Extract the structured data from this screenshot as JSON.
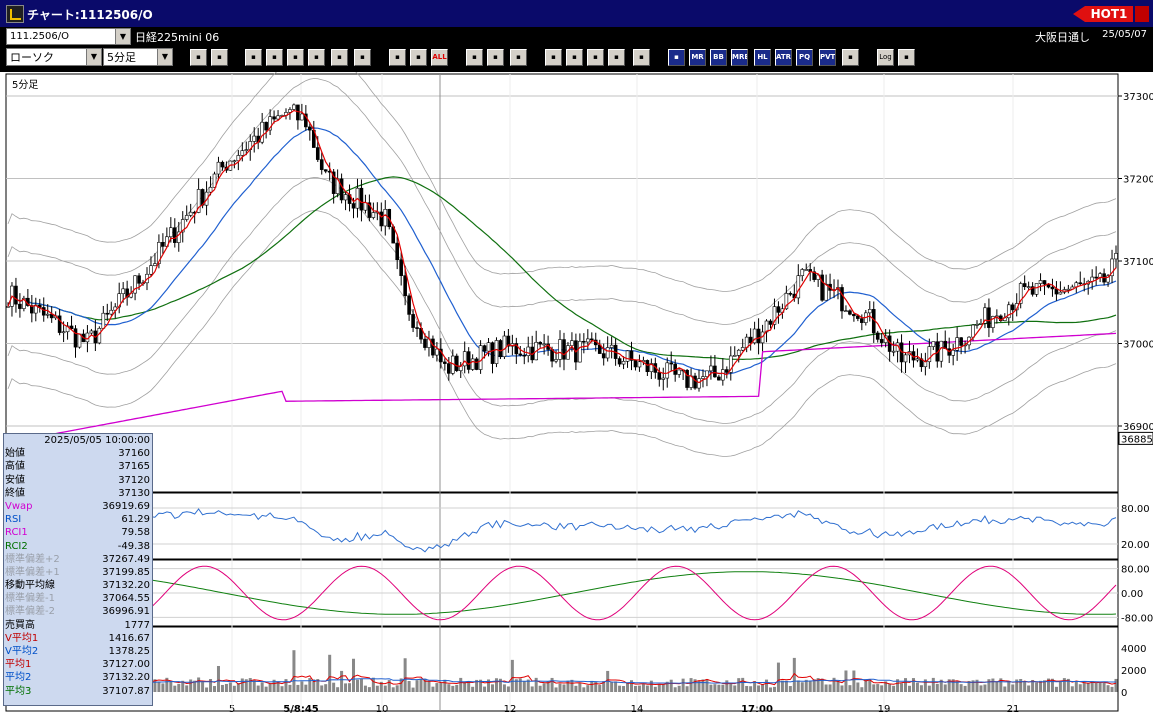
{
  "window": {
    "title": "チャート:1112506/O",
    "hot_label": "HOT1"
  },
  "info": {
    "symbol": "111.2506/O",
    "name": "日経225mini 06",
    "market": "大阪日通し",
    "date": "25/05/07"
  },
  "toolbar": {
    "chart_type": "ローソク",
    "interval": "5分足",
    "buttons": [
      {
        "icon": "zoom-icon",
        "label": ""
      },
      {
        "icon": "window-icon",
        "label": ""
      },
      {
        "icon": "pen-icon",
        "label": ""
      },
      {
        "icon": "line-draw-icon",
        "label": ""
      },
      {
        "icon": "cursor-icon",
        "label": ""
      },
      {
        "icon": "arrow-icon",
        "label": ""
      },
      {
        "icon": "memo-icon",
        "label": ""
      },
      {
        "icon": "trash-icon",
        "label": ""
      },
      {
        "icon": "candle-left-icon",
        "label": ""
      },
      {
        "icon": "candle-right-icon",
        "label": ""
      },
      {
        "icon": "all-icon",
        "label": "ALL"
      },
      {
        "icon": "settings-icon",
        "label": ""
      },
      {
        "icon": "wrench-icon",
        "label": ""
      },
      {
        "icon": "palette-icon",
        "label": ""
      },
      {
        "icon": "download-icon",
        "label": ""
      },
      {
        "icon": "magnify-icon",
        "label": ""
      },
      {
        "icon": "chart-bars-icon",
        "label": ""
      },
      {
        "icon": "chart-mark-icon",
        "label": ""
      },
      {
        "icon": "disabled-icon",
        "label": ""
      },
      {
        "icon": "volume-icon",
        "label": ""
      },
      {
        "icon": "mr-icon",
        "label": "MR"
      },
      {
        "icon": "bb-icon",
        "label": "BB"
      },
      {
        "icon": "mre-icon",
        "label": "MRE"
      },
      {
        "icon": "hl-icon",
        "label": "HL"
      },
      {
        "icon": "atr-icon",
        "label": "ATR"
      },
      {
        "icon": "pq-icon",
        "label": "PQ"
      },
      {
        "icon": "pvt-icon",
        "label": "PVT"
      },
      {
        "icon": "square-icon",
        "label": ""
      },
      {
        "icon": "log-icon",
        "label": "Log"
      },
      {
        "icon": "export-icon",
        "label": ""
      }
    ]
  },
  "chart": {
    "interval_label": "5分足",
    "current_price": "36885",
    "price_ticks": [
      "37300",
      "37200",
      "37100",
      "37000",
      "36900"
    ],
    "rsi_ticks": [
      "80.00",
      "20.00"
    ],
    "rci_ticks": [
      "80.00",
      "0.00",
      "-80.00"
    ],
    "vol_ticks": [
      "4000",
      "2000",
      "0"
    ],
    "x_labels": [
      "5",
      "5/8:45",
      "10",
      "12",
      "14",
      "17:00",
      "19",
      "21"
    ],
    "colors": {
      "candle_up": "#ffffff",
      "candle_down": "#000000",
      "bb_outer": "#a0a0a0",
      "ma_short": "#e00000",
      "ma_mid": "#2060d0",
      "ma_long": "#107010",
      "vwap": "#d000d0",
      "rsi": "#3070d0",
      "rci1": "#e0007a",
      "rci2": "#108010",
      "volume": "#888888"
    }
  },
  "info_panel": {
    "datetime": "2025/05/05  10:00:00",
    "rows": [
      {
        "label": "始値",
        "value": "37160",
        "style": ""
      },
      {
        "label": "高値",
        "value": "37165",
        "style": ""
      },
      {
        "label": "安値",
        "value": "37120",
        "style": ""
      },
      {
        "label": "終値",
        "value": "37130",
        "style": ""
      },
      {
        "label": "Vwap",
        "value": "36919.69",
        "style": "mag"
      },
      {
        "label": "RSI",
        "value": "61.29",
        "style": "blu"
      },
      {
        "label": "RCI1",
        "value": "79.58",
        "style": "mag"
      },
      {
        "label": "RCI2",
        "value": "-49.38",
        "style": "grn"
      },
      {
        "label": "標準偏差+2",
        "value": "37267.49",
        "style": "grey"
      },
      {
        "label": "標準偏差+1",
        "value": "37199.85",
        "style": "grey"
      },
      {
        "label": "移動平均線",
        "value": "37132.20",
        "style": ""
      },
      {
        "label": "標準偏差-1",
        "value": "37064.55",
        "style": "grey"
      },
      {
        "label": "標準偏差-2",
        "value": "36996.91",
        "style": "grey"
      },
      {
        "label": "売買高",
        "value": "1777",
        "style": ""
      },
      {
        "label": "V平均1",
        "value": "1416.67",
        "style": "red"
      },
      {
        "label": "V平均2",
        "value": "1378.25",
        "style": "blu"
      },
      {
        "label": "平均1",
        "value": "37127.00",
        "style": "red"
      },
      {
        "label": "平均2",
        "value": "37132.20",
        "style": "blu"
      },
      {
        "label": "平均3",
        "value": "37107.87",
        "style": "grn"
      }
    ]
  }
}
